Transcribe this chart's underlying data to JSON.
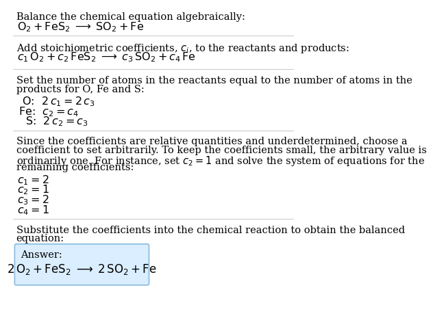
{
  "bg_color": "#ffffff",
  "text_color": "#000000",
  "line_color": "#cccccc",
  "answer_box_color": "#daeeff",
  "answer_box_border": "#88bbdd",
  "fs_body": 10.5,
  "fs_eq": 11.5,
  "fs_answer_eq": 12.0,
  "sections": [
    {
      "type": "text_then_math",
      "text": "Balance the chemical equation algebraically:",
      "math": "$\\mathrm{O_2 + FeS_2 \\;\\longrightarrow\\; SO_2 + Fe}$",
      "separator": true
    },
    {
      "type": "text_then_math",
      "text": "Add stoichiometric coefficients, $c_i$, to the reactants and products:",
      "math": "$c_1\\,\\mathrm{O_2} + c_2\\,\\mathrm{FeS_2} \\;\\longrightarrow\\; c_3\\,\\mathrm{SO_2} + c_4\\,\\mathrm{Fe}$",
      "separator": true
    },
    {
      "type": "text_lines_math",
      "text_lines": [
        "Set the number of atoms in the reactants equal to the number of atoms in the",
        "products for O, Fe and S:"
      ],
      "math_lines": [
        " O:  $2\\,c_1 = 2\\,c_3$",
        "Fe:  $c_2 = c_4$",
        "  S:  $2\\,c_2 = c_3$"
      ],
      "separator": true
    },
    {
      "type": "text_lines_math",
      "text_lines": [
        "Since the coefficients are relative quantities and underdetermined, choose a",
        "coefficient to set arbitrarily. To keep the coefficients small, the arbitrary value is",
        "ordinarily one. For instance, set $c_2 = 1$ and solve the system of equations for the",
        "remaining coefficients:"
      ],
      "math_lines": [
        "$c_1 = 2$",
        "$c_2 = 1$",
        "$c_3 = 2$",
        "$c_4 = 1$"
      ],
      "separator": true
    },
    {
      "type": "text_answer",
      "text_lines": [
        "Substitute the coefficients into the chemical reaction to obtain the balanced",
        "equation:"
      ],
      "answer_label": "Answer:",
      "answer_eq": "$2\\,\\mathrm{O_2} + \\mathrm{FeS_2} \\;\\longrightarrow\\; 2\\,\\mathrm{SO_2} + \\mathrm{Fe}$",
      "separator": false
    }
  ]
}
